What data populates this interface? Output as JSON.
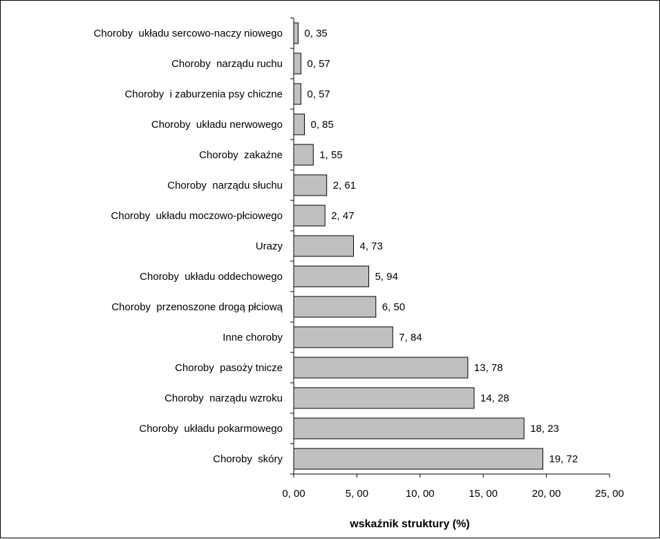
{
  "chart_data": {
    "type": "bar",
    "orientation": "horizontal",
    "categories": [
      "Choroby  układu sercowo-naczy niowego",
      "Choroby  narządu ruchu",
      "Choroby  i zaburzenia psy chiczne",
      "Choroby  układu nerwowego",
      "Choroby  zakaźne",
      "Choroby  narządu słuchu",
      "Choroby  układu moczowo-płciowego",
      "Urazy",
      "Choroby  układu oddechowego",
      "Choroby  przenoszone drogą płciową",
      "Inne choroby",
      "Choroby  pasoży tnicze",
      "Choroby  narządu wzroku",
      "Choroby  układu pokarmowego",
      "Choroby  skóry"
    ],
    "values": [
      0.35,
      0.57,
      0.57,
      0.85,
      1.55,
      2.61,
      2.47,
      4.73,
      5.94,
      6.5,
      7.84,
      13.78,
      14.28,
      18.23,
      19.72
    ],
    "value_labels": [
      "0, 35",
      "0, 57",
      "0, 57",
      "0, 85",
      "1, 55",
      "2, 61",
      "2, 47",
      "4, 73",
      "5, 94",
      "6, 50",
      "7, 84",
      "13, 78",
      "14, 28",
      "18, 23",
      "19, 72"
    ],
    "xlim": [
      0,
      25
    ],
    "x_ticks": [
      0,
      5,
      10,
      15,
      20,
      25
    ],
    "x_tick_labels": [
      "0, 00",
      "5, 00",
      "10, 00",
      "15, 00",
      "20, 00",
      "25, 00"
    ],
    "xlabel": "wskaźnik struktury (%)",
    "ylabel": "",
    "title": "",
    "grid": false,
    "bar_color": "#c0c0c0",
    "bar_edge_color": "#000000"
  }
}
